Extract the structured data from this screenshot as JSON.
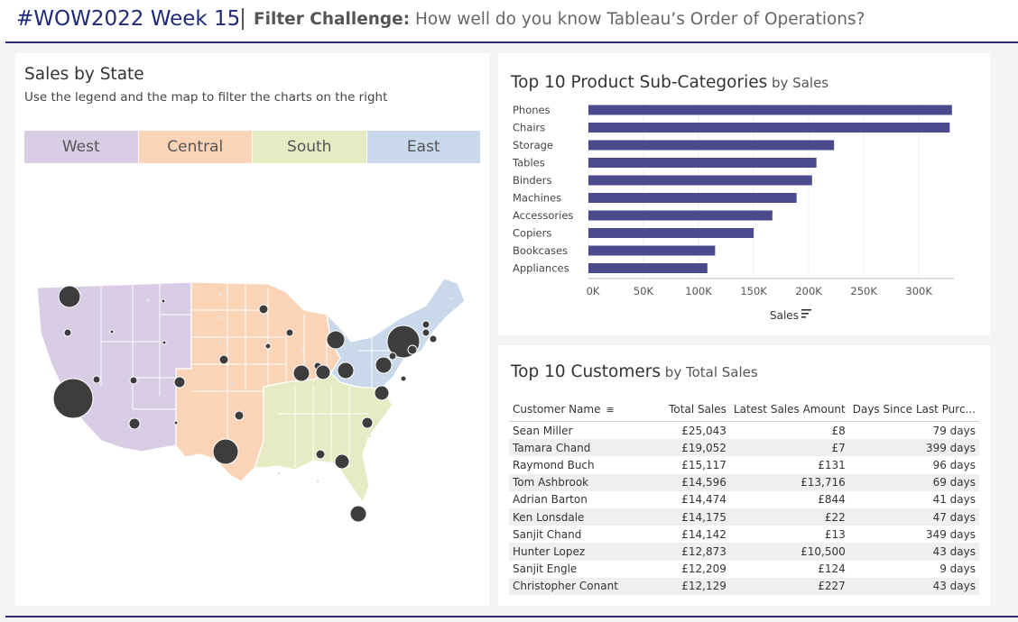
{
  "header": {
    "title": "#WOW2022 Week 15",
    "subtitle_bold": "Filter Challenge:",
    "subtitle_rest": " How well do you know Tableau’s Order of Operations?"
  },
  "map_panel": {
    "title": "Sales by State",
    "subtitle": "Use the legend and the map to filter the charts on the right",
    "legend": [
      {
        "label": "West",
        "color": "#d9cde6"
      },
      {
        "label": "Central",
        "color": "#fbd3b6"
      },
      {
        "label": "South",
        "color": "#e6ebc4"
      },
      {
        "label": "East",
        "color": "#c9d8ea"
      }
    ],
    "bubble_color": "#3d3d3d"
  },
  "bar_panel": {
    "title": "Top 10 Product Sub-Categories",
    "title_suffix": " by Sales",
    "x_label": "Sales",
    "sort_icon": "sort-icon"
  },
  "chart_data": {
    "type": "bar",
    "orientation": "horizontal",
    "categories": [
      "Phones",
      "Chairs",
      "Storage",
      "Tables",
      "Binders",
      "Machines",
      "Accessories",
      "Copiers",
      "Bookcases",
      "Appliances"
    ],
    "values": [
      330000,
      328000,
      223000,
      207000,
      203000,
      189000,
      167000,
      150000,
      115000,
      108000
    ],
    "xticks": [
      "0K",
      "50K",
      "100K",
      "150K",
      "200K",
      "250K",
      "300K"
    ],
    "xlim": [
      0,
      340000
    ],
    "title": "Top 10 Product Sub-Categories by Sales",
    "xlabel": "Sales",
    "bar_color": "#4a4a8c",
    "grid": true
  },
  "table_panel": {
    "title": "Top 10 Customers",
    "title_suffix": " by Total Sales",
    "columns": [
      "Customer Name",
      "Total Sales",
      "Latest Sales Amount",
      "Days Since Last Purc..."
    ],
    "rows": [
      [
        "Sean Miller",
        "£25,043",
        "£8",
        "79 days"
      ],
      [
        "Tamara Chand",
        "£19,052",
        "£7",
        "399 days"
      ],
      [
        "Raymond Buch",
        "£15,117",
        "£131",
        "96 days"
      ],
      [
        "Tom Ashbrook",
        "£14,596",
        "£13,716",
        "69 days"
      ],
      [
        "Adrian Barton",
        "£14,474",
        "£844",
        "41 days"
      ],
      [
        "Ken Lonsdale",
        "£14,175",
        "£22",
        "47 days"
      ],
      [
        "Sanjit Chand",
        "£14,142",
        "£13",
        "349 days"
      ],
      [
        "Hunter Lopez",
        "£12,873",
        "£10,500",
        "43 days"
      ],
      [
        "Sanjit Engle",
        "£12,209",
        "£124",
        "9 days"
      ],
      [
        "Christopher Conant",
        "£12,129",
        "£227",
        "43 days"
      ]
    ]
  }
}
